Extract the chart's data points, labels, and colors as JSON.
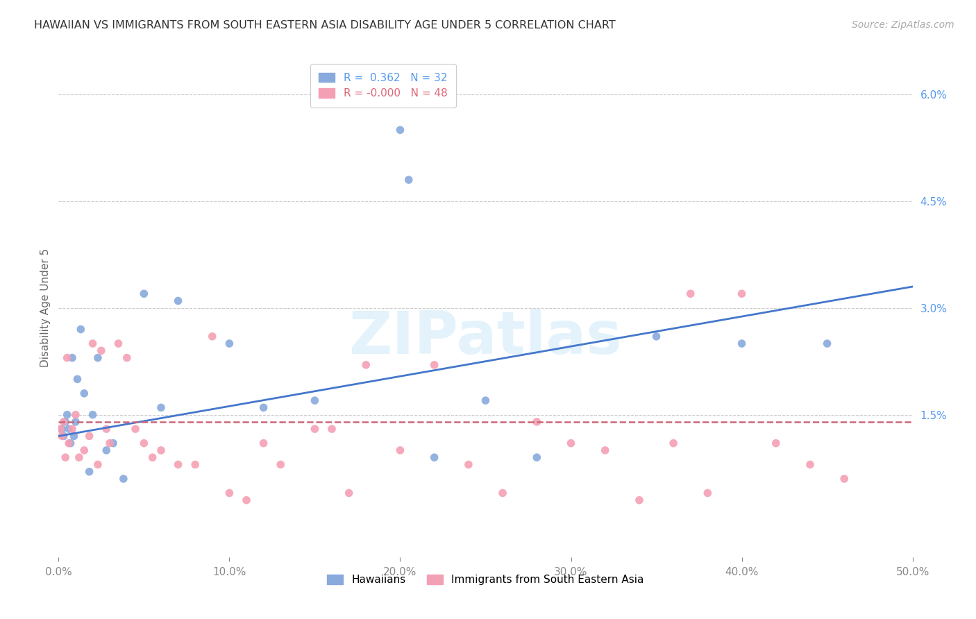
{
  "title": "HAWAIIAN VS IMMIGRANTS FROM SOUTH EASTERN ASIA DISABILITY AGE UNDER 5 CORRELATION CHART",
  "source": "Source: ZipAtlas.com",
  "ylabel": "Disability Age Under 5",
  "right_ytick_labels": [
    "6.0%",
    "4.5%",
    "3.0%",
    "1.5%"
  ],
  "right_ytick_values": [
    6.0,
    4.5,
    3.0,
    1.5
  ],
  "xlim": [
    0.0,
    50.0
  ],
  "ylim": [
    -0.5,
    6.5
  ],
  "xtick_vals": [
    0,
    10,
    20,
    30,
    40,
    50
  ],
  "xtick_labels": [
    "0.0%",
    "10.0%",
    "20.0%",
    "30.0%",
    "40.0%",
    "50.0%"
  ],
  "hgrid_vals": [
    1.5,
    3.0,
    4.5,
    6.0
  ],
  "hawaiians_x": [
    0.2,
    0.3,
    0.4,
    0.5,
    0.6,
    0.7,
    0.8,
    0.9,
    1.0,
    1.1,
    1.3,
    1.5,
    1.8,
    2.0,
    2.3,
    2.8,
    3.2,
    3.8,
    5.0,
    7.0,
    10.0,
    12.0,
    15.0,
    20.0,
    20.5,
    22.0,
    25.0,
    28.0,
    35.0,
    40.0,
    45.0,
    6.0
  ],
  "hawaiians_y": [
    1.3,
    1.2,
    1.4,
    1.5,
    1.3,
    1.1,
    2.3,
    1.2,
    1.4,
    2.0,
    2.7,
    1.8,
    0.7,
    1.5,
    2.3,
    1.0,
    1.1,
    0.6,
    3.2,
    3.1,
    2.5,
    1.6,
    1.7,
    5.5,
    4.8,
    0.9,
    1.7,
    0.9,
    2.6,
    2.5,
    2.5,
    1.6
  ],
  "sea_x": [
    0.1,
    0.2,
    0.3,
    0.4,
    0.5,
    0.6,
    0.8,
    1.0,
    1.2,
    1.5,
    1.8,
    2.0,
    2.3,
    2.5,
    2.8,
    3.0,
    3.5,
    4.0,
    4.5,
    5.0,
    5.5,
    6.0,
    7.0,
    8.0,
    9.0,
    10.0,
    11.0,
    12.0,
    13.0,
    15.0,
    16.0,
    17.0,
    18.0,
    20.0,
    22.0,
    24.0,
    26.0,
    28.0,
    30.0,
    32.0,
    34.0,
    36.0,
    38.0,
    40.0,
    42.0,
    44.0,
    46.0,
    37.0
  ],
  "sea_y": [
    1.3,
    1.2,
    1.4,
    0.9,
    2.3,
    1.1,
    1.3,
    1.5,
    0.9,
    1.0,
    1.2,
    2.5,
    0.8,
    2.4,
    1.3,
    1.1,
    2.5,
    2.3,
    1.3,
    1.1,
    0.9,
    1.0,
    0.8,
    0.8,
    2.6,
    0.4,
    0.3,
    1.1,
    0.8,
    1.3,
    1.3,
    0.4,
    2.2,
    1.0,
    2.2,
    0.8,
    0.4,
    1.4,
    1.1,
    1.0,
    0.3,
    1.1,
    0.4,
    3.2,
    1.1,
    0.8,
    0.6,
    3.2
  ],
  "blue_line_x": [
    0.0,
    50.0
  ],
  "blue_line_y": [
    1.2,
    3.3
  ],
  "pink_line_x": [
    0.0,
    50.0
  ],
  "pink_line_y": [
    1.4,
    1.4
  ],
  "dot_size": 70,
  "hawaiian_color": "#88aadd",
  "sea_color": "#f4a0b4",
  "blue_line_color": "#4477cc",
  "pink_line_color": "#cc6677",
  "grid_color": "#cccccc",
  "watermark_text": "ZIPatlas",
  "background_color": "#ffffff",
  "title_fontsize": 11.5,
  "ylabel_fontsize": 11,
  "tick_fontsize": 11,
  "legend_fontsize": 11,
  "source_fontsize": 10,
  "r_blue": "0.362",
  "n_blue": "32",
  "r_pink": "-0.000",
  "n_pink": "48"
}
